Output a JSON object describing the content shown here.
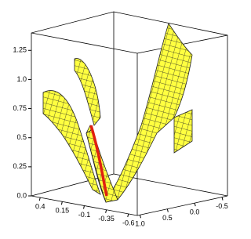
{
  "chart_data": {
    "type": "surface",
    "xlim": [
      0.5,
      -0.7
    ],
    "xticks": [
      0.4,
      0.15,
      -0.1,
      -0.35,
      -0.6
    ],
    "ylim": [
      1.05,
      -0.6
    ],
    "yticks": [
      {
        "value": 1.0,
        "label": "1.0"
      },
      0.5,
      {
        "value": 0.0,
        "label": "0.0"
      },
      -0.5
    ],
    "zlim": [
      0,
      1.4
    ],
    "zticks": [
      {
        "value": 0.0,
        "label": "0.0"
      },
      0.25,
      0.5,
      0.75,
      {
        "value": 1.0,
        "label": "1.0"
      },
      1.25
    ],
    "color": "#ffff40",
    "curve_color": "#e02010"
  }
}
